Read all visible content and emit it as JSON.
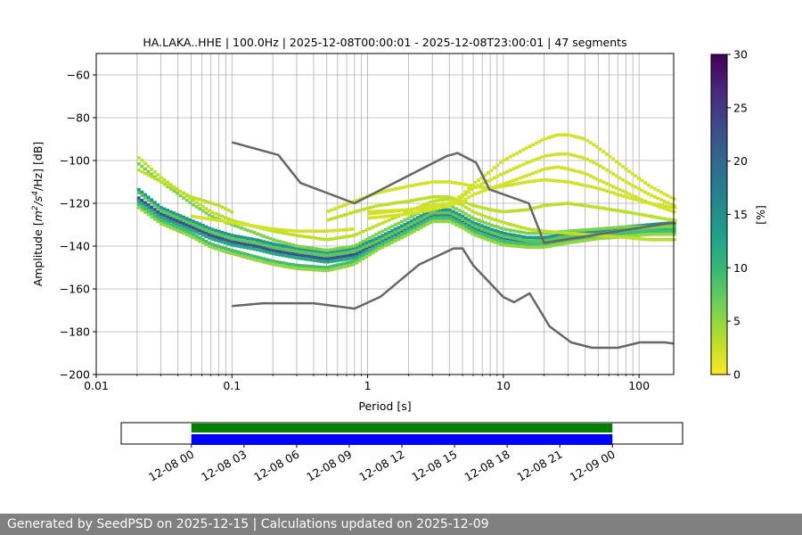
{
  "chart_data": {
    "type": "heatmap",
    "title": "HA.LAKA..HHE | 100.0Hz | 2025-12-08T00:00:01 - 2025-12-08T23:00:01 | 47 segments",
    "xlabel": "Period [s]",
    "ylabel_prefix": "Amplitude [",
    "ylabel_m": "m",
    "ylabel_exp1": "2",
    "ylabel_s": "/s",
    "ylabel_exp2": "4",
    "ylabel_suffix": "/Hz] [dB]",
    "x_scale": "log",
    "xlim": [
      0.01,
      180
    ],
    "ylim": [
      -200,
      -50
    ],
    "x_ticks": [
      {
        "value": 0.01,
        "label": "0.01"
      },
      {
        "value": 0.1,
        "label": "0.1"
      },
      {
        "value": 1,
        "label": "1"
      },
      {
        "value": 10,
        "label": "10"
      },
      {
        "value": 100,
        "label": "100"
      }
    ],
    "y_ticks": [
      {
        "value": -60,
        "label": "−60"
      },
      {
        "value": -80,
        "label": "−80"
      },
      {
        "value": -100,
        "label": "−100"
      },
      {
        "value": -120,
        "label": "−120"
      },
      {
        "value": -140,
        "label": "−140"
      },
      {
        "value": -160,
        "label": "−160"
      },
      {
        "value": -180,
        "label": "−180"
      },
      {
        "value": -200,
        "label": "−200"
      }
    ],
    "grid": true,
    "colorbar": {
      "label": "[%]",
      "range": [
        0,
        30
      ],
      "ticks": [
        {
          "value": 0,
          "label": "0"
        },
        {
          "value": 5,
          "label": "5"
        },
        {
          "value": 10,
          "label": "10"
        },
        {
          "value": 15,
          "label": "15"
        },
        {
          "value": 20,
          "label": "20"
        },
        {
          "value": 25,
          "label": "25"
        },
        {
          "value": 30,
          "label": "30"
        }
      ],
      "colormap": [
        "#fde725",
        "#b5de2b",
        "#6ece58",
        "#35b779",
        "#1f9e89",
        "#26828e",
        "#31688e",
        "#3e4989",
        "#482878",
        "#440154"
      ]
    },
    "noise_model_color": "#666666",
    "high_noise_model": [
      [
        0.1,
        -91.5
      ],
      [
        0.22,
        -97.4
      ],
      [
        0.32,
        -110.5
      ],
      [
        0.8,
        -120
      ],
      [
        3.8,
        -98
      ],
      [
        4.6,
        -96.5
      ],
      [
        6.3,
        -101
      ],
      [
        7.9,
        -113.5
      ],
      [
        15.4,
        -120
      ],
      [
        20,
        -138.5
      ],
      [
        354.8,
        -126
      ]
    ],
    "low_noise_model": [
      [
        0.1,
        -168
      ],
      [
        0.17,
        -166.7
      ],
      [
        0.4,
        -166.7
      ],
      [
        0.8,
        -169.2
      ],
      [
        1.24,
        -163.7
      ],
      [
        2.4,
        -148.6
      ],
      [
        4.3,
        -141.1
      ],
      [
        5.0,
        -141.1
      ],
      [
        6.0,
        -149
      ],
      [
        10.0,
        -163.8
      ],
      [
        12.0,
        -166.2
      ],
      [
        15.6,
        -162.1
      ],
      [
        21.9,
        -177.5
      ],
      [
        31.6,
        -185
      ],
      [
        45.0,
        -187.5
      ],
      [
        70.0,
        -187.5
      ],
      [
        101.0,
        -185
      ],
      [
        154.0,
        -185
      ],
      [
        328.0,
        -187.5
      ]
    ],
    "psd_bands": [
      {
        "periods": [
          0.02,
          0.03,
          0.05,
          0.07,
          0.1,
          0.15,
          0.2,
          0.3,
          0.5,
          0.8,
          1.2,
          2,
          3,
          4,
          5,
          6,
          8,
          10,
          15,
          20,
          30,
          50,
          80,
          120,
          180
        ],
        "db": [
          -117,
          -125,
          -131,
          -135,
          -138,
          -140,
          -142,
          -144,
          -146,
          -144,
          -138,
          -131,
          -125,
          -125,
          -128,
          -131,
          -134,
          -136,
          -138,
          -137,
          -136,
          -134,
          -132,
          -131,
          -130
        ],
        "weight": 22
      },
      {
        "periods": [
          0.02,
          0.03,
          0.05,
          0.07,
          0.1,
          0.15,
          0.2,
          0.3,
          0.5,
          0.8,
          1.2,
          2,
          3,
          4,
          5,
          6,
          8,
          10,
          15,
          20,
          30,
          50,
          80,
          120,
          180
        ],
        "db": [
          -113,
          -122,
          -128,
          -132,
          -135,
          -137,
          -139,
          -141,
          -143,
          -141,
          -136,
          -129,
          -123,
          -123,
          -126,
          -129,
          -132,
          -134,
          -136,
          -136,
          -134,
          -133,
          -131,
          -130,
          -129
        ],
        "weight": 14
      },
      {
        "periods": [
          0.02,
          0.03,
          0.05,
          0.07,
          0.1,
          0.15,
          0.2,
          0.3,
          0.5,
          0.8,
          1.2,
          2,
          3,
          4,
          5,
          6,
          8,
          10,
          15,
          20,
          30,
          50,
          80,
          120,
          180
        ],
        "db": [
          -120,
          -128,
          -134,
          -139,
          -142,
          -145,
          -147,
          -149,
          -150,
          -147,
          -140,
          -133,
          -127,
          -127,
          -130,
          -133,
          -136,
          -138,
          -139,
          -139,
          -137,
          -135,
          -134,
          -133,
          -133
        ],
        "weight": 9
      },
      {
        "periods": [
          0.02,
          0.03,
          0.05,
          0.07,
          0.1,
          0.15,
          0.2,
          0.3,
          0.5,
          0.8,
          1.2,
          2,
          3,
          4,
          5,
          6,
          8,
          10,
          15,
          20,
          30,
          50,
          80,
          120,
          180
        ],
        "db": [
          -101,
          -110,
          -120,
          -126,
          -130,
          -134,
          -137,
          -140,
          -142,
          -140,
          -134,
          -127,
          -121,
          -121,
          -124,
          -127,
          -130,
          -132,
          -134,
          -134,
          -133,
          -132,
          -131,
          -131,
          -131
        ],
        "weight": 6
      },
      {
        "periods": [
          0.02,
          0.03,
          0.05,
          0.07,
          0.1,
          0.15,
          0.2,
          0.3,
          0.5,
          0.8,
          1.2,
          2,
          3,
          4,
          5,
          6,
          8,
          10,
          15,
          20,
          30,
          50,
          80,
          120,
          180
        ],
        "db": [
          -98,
          -108,
          -118,
          -124,
          -128,
          -131,
          -133,
          -135,
          -137,
          -135,
          -130,
          -124,
          -119,
          -118,
          -121,
          -124,
          -127,
          -129,
          -132,
          -133,
          -134,
          -135,
          -136,
          -137,
          -137
        ],
        "weight": 3
      },
      {
        "periods": [
          0.5,
          0.8,
          1.2,
          2,
          3,
          4,
          5,
          6,
          8,
          10,
          15,
          20,
          30,
          50,
          80,
          120,
          180
        ],
        "db": [
          -128,
          -124,
          -121,
          -119,
          -117,
          -117,
          -119,
          -121,
          -123,
          -124,
          -123,
          -121,
          -120,
          -122,
          -124,
          -126,
          -128
        ],
        "weight": 3
      },
      {
        "periods": [
          0.5,
          0.8,
          1.2,
          2,
          3,
          4,
          5,
          6,
          8,
          10,
          15,
          20,
          30,
          50,
          80,
          120,
          180
        ],
        "db": [
          -124,
          -119,
          -115,
          -112,
          -110,
          -110,
          -111,
          -112,
          -113,
          -112,
          -110,
          -109,
          -110,
          -113,
          -117,
          -120,
          -122
        ],
        "weight": 2
      },
      {
        "periods": [
          1,
          2,
          3,
          4,
          5,
          6,
          8,
          10,
          15,
          20,
          25,
          30,
          40,
          50,
          80,
          120,
          180
        ],
        "db": [
          -124,
          -123,
          -122,
          -120,
          -116,
          -111,
          -105,
          -100,
          -94,
          -90,
          -88,
          -88,
          -90,
          -94,
          -104,
          -112,
          -118
        ],
        "weight": 2
      },
      {
        "periods": [
          1,
          2,
          3,
          4,
          5,
          6,
          8,
          10,
          15,
          20,
          25,
          30,
          40,
          50,
          80,
          120,
          180
        ],
        "db": [
          -125,
          -123,
          -121,
          -120,
          -117,
          -113,
          -109,
          -106,
          -101,
          -98,
          -97,
          -97,
          -99,
          -102,
          -110,
          -116,
          -121
        ],
        "weight": 2
      },
      {
        "periods": [
          1,
          2,
          3,
          4,
          5,
          6,
          8,
          10,
          15,
          20,
          25,
          30,
          40,
          50,
          80,
          120,
          180
        ],
        "db": [
          -127,
          -125,
          -123,
          -121,
          -119,
          -116,
          -113,
          -111,
          -107,
          -104,
          -103,
          -104,
          -106,
          -109,
          -115,
          -120,
          -124
        ],
        "weight": 2
      },
      {
        "periods": [
          0.05,
          0.1,
          0.2,
          0.3,
          0.5,
          0.8
        ],
        "db": [
          -126,
          -129,
          -132,
          -133,
          -133,
          -132
        ],
        "weight": 2
      },
      {
        "periods": [
          0.02,
          0.03,
          0.05,
          0.08,
          0.1
        ],
        "db": [
          -104,
          -110,
          -117,
          -121,
          -124
        ],
        "weight": 3
      }
    ],
    "time_axis": {
      "tick_labels": [
        "12-08 00",
        "12-08 03",
        "12-08 06",
        "12-08 09",
        "12-08 12",
        "12-08 15",
        "12-08 18",
        "12-08 21",
        "12-09 00"
      ],
      "range_hours": [
        -4,
        28
      ],
      "bars": [
        {
          "start_hour": 0,
          "end_hour": 24,
          "color": "#008000"
        },
        {
          "start_hour": 0,
          "end_hour": 24,
          "color": "#0000ff"
        }
      ]
    }
  },
  "footer": {
    "text": "Generated by SeedPSD on 2025-12-15 | Calculations updated on 2025-12-09"
  }
}
